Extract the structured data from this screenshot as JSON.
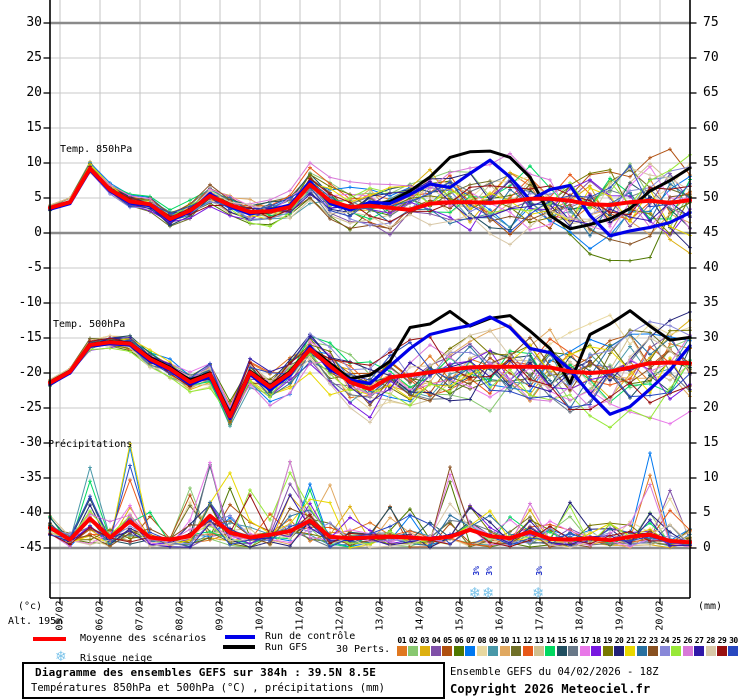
{
  "labels": {
    "left_unit": "(°c)",
    "altitude": "Alt. 195m",
    "right_unit": "(mm)",
    "legend_mean": "Moyenne des scénarios",
    "legend_control": "Run de contrôle",
    "legend_gfs": "Run GFS",
    "legend_perts": "30 Perts.",
    "legend_snow": "Risque neige"
  },
  "pert_numbers": [
    "01",
    "02",
    "03",
    "04",
    "05",
    "06",
    "07",
    "08",
    "09",
    "10",
    "11",
    "12",
    "13",
    "14",
    "15",
    "16",
    "17",
    "18",
    "19",
    "20",
    "21",
    "22",
    "23",
    "24",
    "25",
    "26",
    "27",
    "28",
    "29",
    "30"
  ],
  "footer": {
    "box_line1": "Diagramme des ensembles GEFS sur 384h : 39.5N 8.5E",
    "box_line2": "Températures 850hPa et 500hPa (°C) , précipitations (mm)",
    "info_line1": "Ensemble GEFS du 04/02/2026 - 18Z",
    "info_line2": "Copyright 2026 Meteociel.fr"
  },
  "chart_data": {
    "type": "line",
    "title": "Diagramme des ensembles GEFS sur 384h : 39.5N 8.5E",
    "subtitle": "Températures 850hPa et 500hPa (°C) , précipitations (mm)",
    "x_step_hours": 12,
    "x_total_hours": 384,
    "x_tick_dates": [
      "05/02",
      "06/02",
      "07/02",
      "08/02",
      "09/02",
      "10/02",
      "11/02",
      "12/02",
      "13/02",
      "14/02",
      "15/02",
      "16/02",
      "17/02",
      "18/02",
      "19/02",
      "20/02"
    ],
    "y_left": {
      "unit": "(°c)",
      "ticks": [
        30,
        25,
        20,
        15,
        10,
        5,
        0,
        -5,
        -10,
        -15,
        -20,
        -25,
        -30,
        -35,
        -40,
        -45
      ]
    },
    "y_right": {
      "unit": "(mm)",
      "ticks": [
        75,
        70,
        65,
        60,
        55,
        50,
        45,
        40,
        35,
        30,
        25,
        20,
        15,
        10,
        5,
        0
      ]
    },
    "panels": [
      {
        "id": "temp850",
        "label": "Temp. 850hPa",
        "unit": "°C",
        "series": [
          {
            "name": "Moyenne des scénarios",
            "color": "#ff0000",
            "values": [
              3.6,
              4.4,
              9.2,
              6.2,
              4.5,
              4.1,
              2.0,
              3.2,
              5.3,
              4.0,
              3.0,
              3.1,
              3.7,
              6.9,
              4.6,
              3.7,
              3.9,
              3.6,
              3.3,
              4.2,
              4.4,
              4.4,
              4.3,
              4.5,
              4.9,
              4.9,
              4.6,
              4.1,
              4.0,
              4.4,
              4.6,
              4.3,
              4.7
            ]
          },
          {
            "name": "Run de contrôle",
            "color": "#0000e8",
            "values": [
              3.4,
              4.2,
              9.0,
              6.0,
              4.3,
              3.9,
              1.8,
              3.0,
              5.6,
              3.8,
              2.7,
              3.3,
              4.0,
              7.3,
              4.2,
              3.3,
              4.4,
              4.2,
              5.5,
              7.0,
              6.5,
              8.5,
              10.4,
              8.0,
              4.7,
              6.2,
              6.8,
              2.5,
              -0.4,
              0.3,
              0.8,
              1.5,
              2.9
            ]
          },
          {
            "name": "Run GFS",
            "color": "#000000",
            "values": [
              3.6,
              4.5,
              9.1,
              6.1,
              4.6,
              4.0,
              2.1,
              3.3,
              5.4,
              4.1,
              2.8,
              3.0,
              3.8,
              7.0,
              4.4,
              3.5,
              4.0,
              4.5,
              6.0,
              8.0,
              10.8,
              11.6,
              11.7,
              10.8,
              8.0,
              2.5,
              0.6,
              1.2,
              2.0,
              3.5,
              6.0,
              7.5,
              9.3
            ]
          }
        ],
        "member_spread": [
          0.7,
          0.8,
          0.9,
          1.0,
          1.0,
          1.1,
          1.2,
          1.3,
          1.5,
          1.6,
          1.8,
          2.0,
          2.2,
          2.5,
          2.7,
          3.0,
          3.2,
          3.5,
          3.8,
          4.2,
          4.6,
          5.0,
          5.3,
          5.5,
          5.7,
          5.9,
          6.1,
          6.3,
          6.5,
          6.7,
          6.8,
          6.9,
          7.0
        ]
      },
      {
        "id": "temp500",
        "label": "Temp. 500hPa",
        "unit": "°C",
        "series": [
          {
            "name": "Moyenne des scénarios",
            "color": "#ff0000",
            "values": [
              -21.4,
              -19.8,
              -16.0,
              -15.6,
              -15.8,
              -18.0,
              -19.4,
              -21.3,
              -20.2,
              -26.2,
              -19.9,
              -22.0,
              -20.0,
              -16.6,
              -19.0,
              -21.3,
              -22.3,
              -20.6,
              -20.3,
              -19.9,
              -19.5,
              -19.2,
              -19.1,
              -19.1,
              -19.1,
              -19.2,
              -19.8,
              -20.0,
              -19.8,
              -19.2,
              -18.6,
              -18.5,
              -18.6
            ]
          },
          {
            "name": "Run de contrôle",
            "color": "#0000e8",
            "values": [
              -21.6,
              -20.0,
              -16.2,
              -15.8,
              -16.0,
              -18.3,
              -19.6,
              -21.6,
              -20.5,
              -26.5,
              -20.2,
              -22.4,
              -20.3,
              -16.2,
              -19.5,
              -21.0,
              -21.5,
              -19.0,
              -16.5,
              -14.5,
              -13.8,
              -13.2,
              -12.0,
              -13.5,
              -16.5,
              -17.1,
              -19.5,
              -23.0,
              -25.9,
              -24.8,
              -22.3,
              -19.6,
              -16.1
            ]
          },
          {
            "name": "Run GFS",
            "color": "#000000",
            "values": [
              -21.3,
              -19.7,
              -15.9,
              -15.5,
              -15.7,
              -17.8,
              -19.2,
              -21.0,
              -20.0,
              -25.8,
              -19.7,
              -21.8,
              -19.8,
              -16.4,
              -18.6,
              -20.8,
              -20.3,
              -18.3,
              -13.5,
              -13.0,
              -11.2,
              -13.3,
              -12.2,
              -11.8,
              -14.0,
              -16.5,
              -21.5,
              -14.5,
              -13.0,
              -11.1,
              -13.3,
              -15.3,
              -14.9
            ]
          }
        ],
        "member_spread": [
          0.8,
          0.9,
          1.0,
          1.1,
          1.2,
          1.3,
          1.5,
          1.7,
          1.9,
          2.1,
          2.3,
          2.5,
          2.8,
          3.0,
          3.3,
          3.5,
          3.8,
          4.0,
          4.3,
          4.5,
          4.8,
          5.0,
          5.3,
          5.5,
          5.7,
          5.9,
          6.1,
          6.3,
          6.5,
          6.7,
          6.9,
          7.0,
          7.2
        ]
      },
      {
        "id": "precip",
        "label": "Précipitations",
        "unit": "mm",
        "series": [
          {
            "name": "Moyenne des scénarios",
            "color": "#ff0000",
            "values": [
              2.9,
              1.2,
              4.2,
              1.5,
              3.8,
              1.5,
              1.2,
              1.7,
              4.6,
              2.2,
              1.5,
              1.9,
              2.4,
              3.9,
              1.6,
              1.4,
              1.5,
              1.6,
              1.5,
              1.3,
              1.6,
              2.6,
              1.7,
              1.4,
              2.3,
              1.3,
              1.2,
              1.4,
              1.1,
              1.6,
              1.9,
              1.0,
              0.8
            ]
          }
        ],
        "member_spike_max": [
          5,
          3,
          13.5,
          4,
          16.6,
          5,
          4,
          9,
          17.1,
          11.6,
          9.7,
          6,
          13.8,
          12,
          9.5,
          6.5,
          4,
          7,
          6.5,
          5,
          11.4,
          6,
          5.5,
          5,
          8,
          6,
          6.5,
          5,
          4,
          4.5,
          15.9,
          9.7,
          3
        ]
      }
    ],
    "members": {
      "count": 30,
      "colors": [
        "#e07820",
        "#88c870",
        "#ddb010",
        "#8050a8",
        "#b05010",
        "#507800",
        "#0078f0",
        "#e8d8a0",
        "#4898a8",
        "#e0a860",
        "#707028",
        "#e85818",
        "#d0c090",
        "#00d860",
        "#204f60",
        "#687888",
        "#e878e8",
        "#7818e0",
        "#787800",
        "#202078",
        "#e8d800",
        "#2870a0",
        "#885020",
        "#8888d8",
        "#98e838",
        "#d878d8",
        "#3018a8",
        "#d8c8a8",
        "#981010",
        "#2848c0"
      ]
    },
    "snow_risk": {
      "label": "Risque neige",
      "points": [
        {
          "hours": 256,
          "pct": "3%"
        },
        {
          "hours": 264,
          "pct": "3%"
        },
        {
          "hours": 294,
          "pct": "3%"
        }
      ]
    }
  }
}
